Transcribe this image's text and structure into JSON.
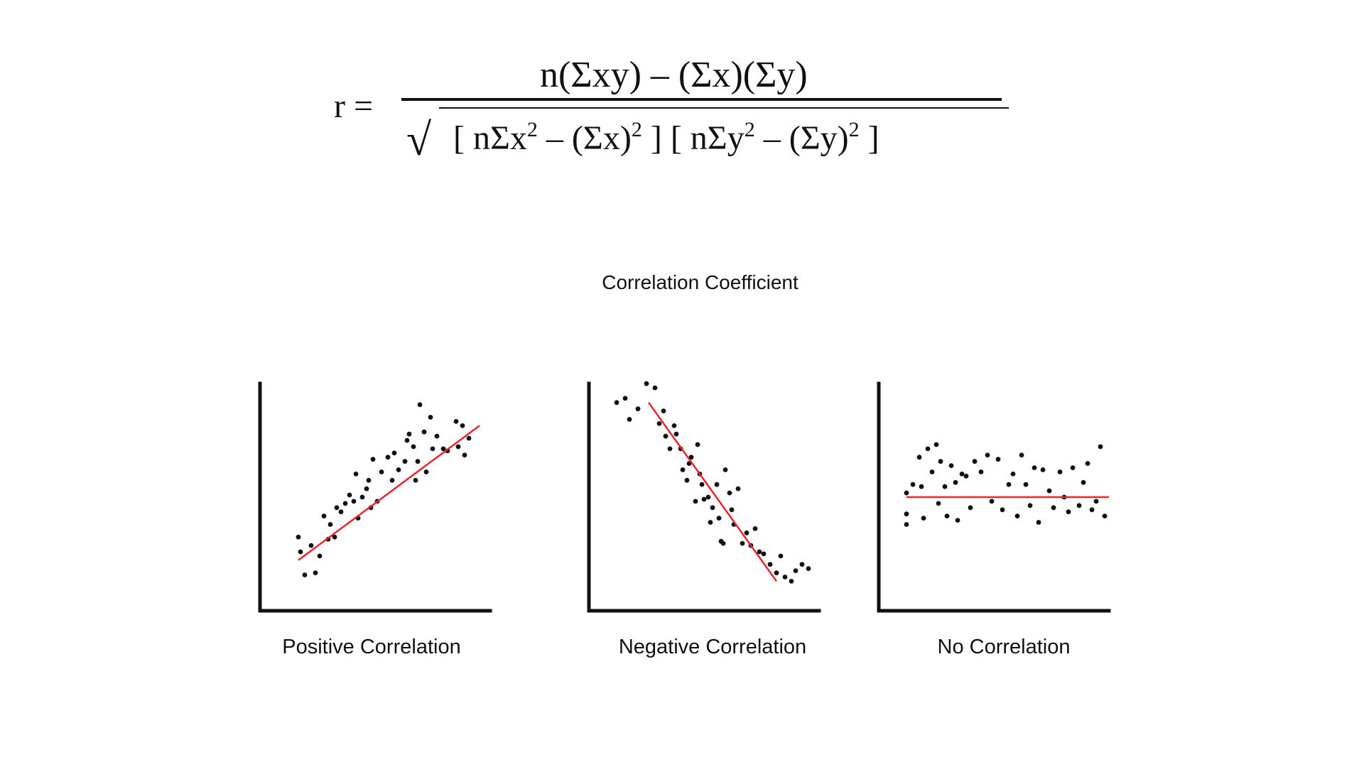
{
  "formula": {
    "lhs": "r =",
    "numerator": "n(Σxy) – (Σx)(Σy)",
    "radical": "√",
    "denominator_parts": [
      "[ nΣx",
      "2",
      " – (Σx)",
      "2",
      " ] [ nΣy",
      "2",
      " – (Σy)",
      "2",
      " ]"
    ]
  },
  "caption": "Correlation Coefficient",
  "colors": {
    "points": "#111111",
    "trend_line": "#e8262a",
    "axes": "#111111"
  },
  "chart_data": [
    {
      "type": "scatter",
      "name": "Positive Correlation",
      "xlabel": "",
      "ylabel": "",
      "xlim": [
        0,
        100
      ],
      "ylim": [
        0,
        100
      ],
      "grid": false,
      "points": [
        [
          10,
          31
        ],
        [
          13,
          13
        ],
        [
          11,
          24
        ],
        [
          16,
          27
        ],
        [
          18,
          14
        ],
        [
          20,
          22
        ],
        [
          22,
          41
        ],
        [
          24,
          30
        ],
        [
          25,
          37
        ],
        [
          27,
          31
        ],
        [
          28,
          45
        ],
        [
          30,
          43
        ],
        [
          32,
          47
        ],
        [
          34,
          51
        ],
        [
          36,
          48
        ],
        [
          37,
          61
        ],
        [
          38,
          40
        ],
        [
          40,
          50
        ],
        [
          42,
          54
        ],
        [
          43,
          58
        ],
        [
          44,
          45
        ],
        [
          45,
          68
        ],
        [
          47,
          48
        ],
        [
          49,
          62
        ],
        [
          52,
          69
        ],
        [
          54,
          58
        ],
        [
          55,
          71
        ],
        [
          57,
          63
        ],
        [
          60,
          67
        ],
        [
          61,
          77
        ],
        [
          62,
          80
        ],
        [
          64,
          74
        ],
        [
          65,
          58
        ],
        [
          66,
          67
        ],
        [
          67,
          94
        ],
        [
          69,
          81
        ],
        [
          70,
          62
        ],
        [
          72,
          88
        ],
        [
          73,
          73
        ],
        [
          75,
          79
        ],
        [
          78,
          73
        ],
        [
          80,
          72
        ],
        [
          84,
          86
        ],
        [
          85,
          74
        ],
        [
          87,
          84
        ],
        [
          88,
          70
        ],
        [
          90,
          78
        ]
      ],
      "trend": [
        [
          10,
          20
        ],
        [
          95,
          84
        ]
      ]
    },
    {
      "type": "scatter",
      "name": "Negative Correlation",
      "xlabel": "",
      "ylabel": "",
      "xlim": [
        0,
        100
      ],
      "ylim": [
        0,
        100
      ],
      "grid": false,
      "points": [
        [
          5,
          95
        ],
        [
          9,
          97
        ],
        [
          11,
          87
        ],
        [
          15,
          92
        ],
        [
          19,
          104
        ],
        [
          23,
          102
        ],
        [
          25,
          85
        ],
        [
          27,
          91
        ],
        [
          28,
          79
        ],
        [
          30,
          73
        ],
        [
          32,
          84
        ],
        [
          33,
          80
        ],
        [
          35,
          73
        ],
        [
          36,
          63
        ],
        [
          38,
          58
        ],
        [
          39,
          66
        ],
        [
          40,
          69
        ],
        [
          42,
          48
        ],
        [
          43,
          75
        ],
        [
          44,
          61
        ],
        [
          45,
          56
        ],
        [
          46,
          49
        ],
        [
          48,
          50
        ],
        [
          49,
          38
        ],
        [
          50,
          45
        ],
        [
          52,
          56
        ],
        [
          53,
          40
        ],
        [
          54,
          29
        ],
        [
          55,
          28
        ],
        [
          56,
          63
        ],
        [
          58,
          52
        ],
        [
          59,
          44
        ],
        [
          60,
          37
        ],
        [
          62,
          54
        ],
        [
          64,
          28
        ],
        [
          66,
          33
        ],
        [
          68,
          27
        ],
        [
          70,
          35
        ],
        [
          72,
          24
        ],
        [
          74,
          23
        ],
        [
          77,
          18
        ],
        [
          80,
          14
        ],
        [
          82,
          22
        ],
        [
          84,
          12
        ],
        [
          87,
          10
        ],
        [
          89,
          15
        ],
        [
          92,
          18
        ],
        [
          95,
          16
        ]
      ],
      "trend": [
        [
          20,
          95
        ],
        [
          80,
          10
        ]
      ]
    },
    {
      "type": "scatter",
      "name": "No Correlation",
      "xlabel": "",
      "ylabel": "",
      "xlim": [
        0,
        100
      ],
      "ylim": [
        0,
        100
      ],
      "grid": false,
      "points": [
        [
          5,
          52
        ],
        [
          5,
          37
        ],
        [
          5,
          42
        ],
        [
          8,
          56
        ],
        [
          11,
          69
        ],
        [
          12,
          55
        ],
        [
          13,
          40
        ],
        [
          15,
          73
        ],
        [
          17,
          62
        ],
        [
          19,
          75
        ],
        [
          20,
          47
        ],
        [
          21,
          67
        ],
        [
          23,
          55
        ],
        [
          24,
          41
        ],
        [
          26,
          65
        ],
        [
          28,
          57
        ],
        [
          29,
          39
        ],
        [
          31,
          61
        ],
        [
          33,
          60
        ],
        [
          35,
          45
        ],
        [
          37,
          67
        ],
        [
          40,
          62
        ],
        [
          43,
          70
        ],
        [
          45,
          48
        ],
        [
          48,
          68
        ],
        [
          50,
          44
        ],
        [
          53,
          56
        ],
        [
          55,
          61
        ],
        [
          57,
          41
        ],
        [
          59,
          70
        ],
        [
          61,
          56
        ],
        [
          63,
          46
        ],
        [
          65,
          64
        ],
        [
          67,
          38
        ],
        [
          69,
          63
        ],
        [
          72,
          53
        ],
        [
          74,
          45
        ],
        [
          77,
          62
        ],
        [
          79,
          50
        ],
        [
          81,
          43
        ],
        [
          83,
          64
        ],
        [
          86,
          46
        ],
        [
          88,
          57
        ],
        [
          90,
          66
        ],
        [
          92,
          44
        ],
        [
          94,
          48
        ],
        [
          96,
          74
        ],
        [
          98,
          41
        ]
      ],
      "trend": [
        [
          5,
          50
        ],
        [
          100,
          50
        ]
      ]
    }
  ],
  "labels": {
    "positive": "Positive Correlation",
    "negative": "Negative Correlation",
    "none": "No Correlation"
  }
}
